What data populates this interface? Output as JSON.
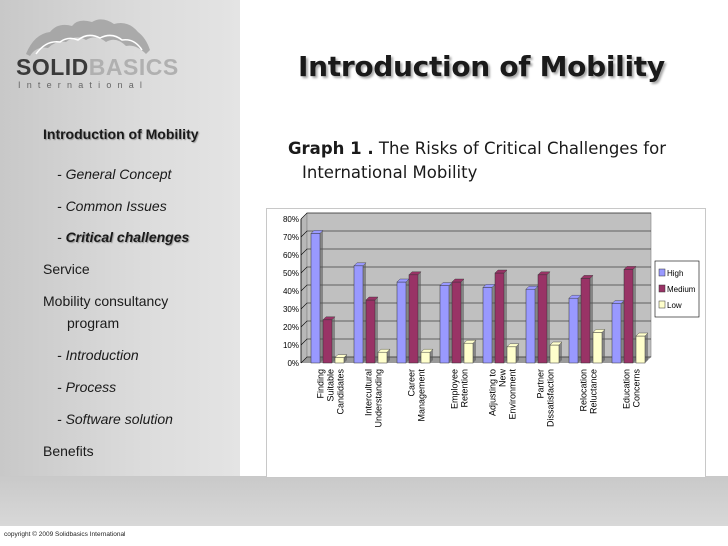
{
  "logo": {
    "solid": "SOLID",
    "basics": "BASICS",
    "sub": "International"
  },
  "title": "Introduction of Mobility",
  "nav": {
    "items": [
      {
        "label": "Introduction of Mobility"
      },
      {
        "prefix": "- ",
        "label": "General Concept"
      },
      {
        "prefix": "- ",
        "label": "Common Issues"
      },
      {
        "prefix": "- ",
        "label": "Critical challenges"
      },
      {
        "label": "Service"
      },
      {
        "label": "Mobility consultancy"
      },
      {
        "label": "program"
      },
      {
        "prefix": "- ",
        "label": "Introduction"
      },
      {
        "prefix": "- ",
        "label": "Process"
      },
      {
        "prefix": "- ",
        "label": "Software solution"
      },
      {
        "label": "Benefits"
      }
    ]
  },
  "graph": {
    "label": "Graph 1 .",
    "caption_line1": "The Risks of Critical Challenges for",
    "caption_line2": "International Mobility"
  },
  "footer": {
    "copyright": "copyright © 2009 Solidbasics International"
  },
  "chart_data": {
    "type": "bar",
    "title": "The Risks of Critical Challenges for International Mobility",
    "categories": [
      [
        "Finding",
        "Suitable",
        "Candidates"
      ],
      [
        "Intercultural",
        "Understanding"
      ],
      [
        "Career",
        "Management"
      ],
      [
        "Employee",
        "Retention"
      ],
      [
        "Adjusting to",
        "New",
        "Environment"
      ],
      [
        "Partner",
        "Dissatisfaction"
      ],
      [
        "Relocation",
        "Reluctance"
      ],
      [
        "Education",
        "Concerns"
      ]
    ],
    "series": [
      {
        "name": "High",
        "color": "#9999ff",
        "values": [
          72,
          54,
          45,
          43,
          42,
          41,
          36,
          33
        ]
      },
      {
        "name": "Medium",
        "color": "#993366",
        "values": [
          24,
          35,
          49,
          45,
          50,
          49,
          47,
          52
        ]
      },
      {
        "name": "Low",
        "color": "#ffffcc",
        "values": [
          3,
          6,
          6,
          11,
          9,
          10,
          17,
          15
        ]
      }
    ],
    "ylim": [
      0,
      80
    ],
    "yticks": [
      "0%",
      "10%",
      "20%",
      "30%",
      "40%",
      "50%",
      "60%",
      "70%",
      "80%"
    ],
    "legend_position": "right"
  }
}
